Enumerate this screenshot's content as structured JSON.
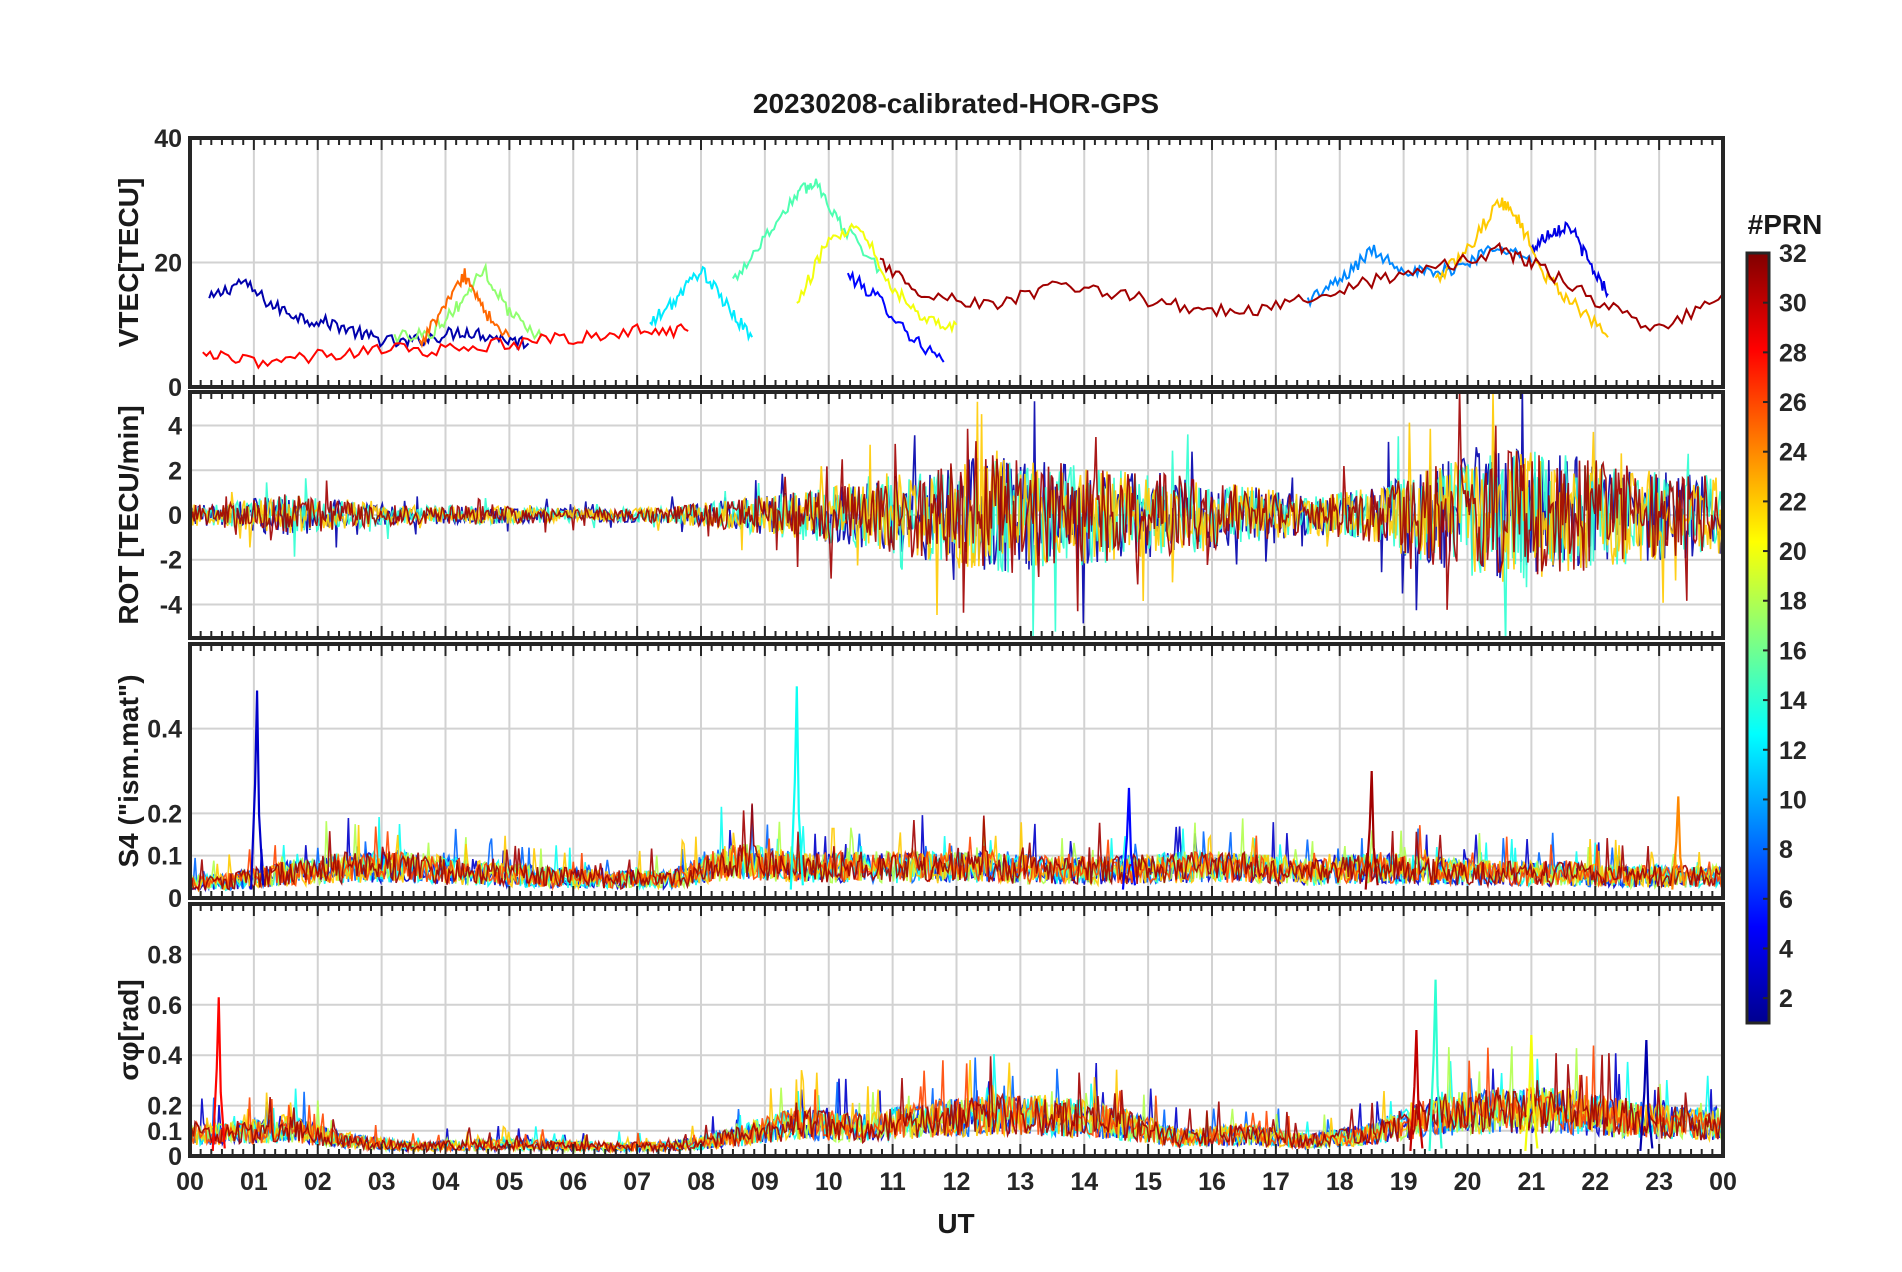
{
  "chart_data": {
    "type": "line",
    "title": "20230208-calibrated-HOR-GPS",
    "xlabel": "UT",
    "x_ticks": [
      "00",
      "01",
      "02",
      "03",
      "04",
      "05",
      "06",
      "07",
      "08",
      "09",
      "10",
      "11",
      "12",
      "13",
      "14",
      "15",
      "16",
      "17",
      "18",
      "19",
      "20",
      "21",
      "22",
      "23",
      "00"
    ],
    "x_range": [
      0,
      24
    ],
    "colorbar": {
      "label": "#PRN",
      "range": [
        1,
        32
      ],
      "ticks": [
        "2",
        "4",
        "6",
        "8",
        "10",
        "12",
        "14",
        "16",
        "18",
        "20",
        "22",
        "24",
        "26",
        "28",
        "30",
        "32"
      ],
      "colormap": [
        "#00008f",
        "#0000ff",
        "#0080ff",
        "#00ffff",
        "#80ff80",
        "#ffff00",
        "#ff8000",
        "#ff0000",
        "#800000"
      ]
    },
    "panels": [
      {
        "name": "vtec",
        "ylabel": "VTEC[TECU]",
        "ylim": [
          0,
          40
        ],
        "y_ticks": [
          "0",
          "20",
          "40"
        ],
        "series": [
          {
            "prn": 2,
            "x": [
              0.3,
              0.8,
              1.3,
              1.8,
              2.3,
              2.8,
              3.3,
              3.8,
              4.3,
              4.8,
              5.3
            ],
            "y": [
              14,
              17,
              13,
              11,
              10,
              8,
              7,
              8,
              9,
              8,
              7
            ]
          },
          {
            "prn": 5,
            "x": [
              10.3,
              10.8,
              11.3,
              11.8
            ],
            "y": [
              18,
              14,
              8,
              4
            ]
          },
          {
            "prn": 4,
            "x": [
              21.0,
              21.3,
              21.6,
              21.9,
              22.2
            ],
            "y": [
              22,
              25,
              26,
              20,
              15
            ]
          },
          {
            "prn": 9,
            "x": [
              17.5,
              18.0,
              18.5,
              19.0,
              19.5,
              20.0,
              20.5,
              21.0
            ],
            "y": [
              14,
              17,
              22,
              19,
              18,
              20,
              23,
              20
            ]
          },
          {
            "prn": 12,
            "x": [
              7.2,
              7.6,
              8.0,
              8.4,
              8.8
            ],
            "y": [
              10,
              14,
              19,
              13,
              8
            ]
          },
          {
            "prn": 15,
            "x": [
              8.5,
              9.0,
              9.5,
              9.8,
              10.2,
              10.8
            ],
            "y": [
              17,
              24,
              31,
              33,
              26,
              19
            ]
          },
          {
            "prn": 17,
            "x": [
              3.2,
              3.8,
              4.2,
              4.6,
              5.0,
              5.5
            ],
            "y": [
              8,
              9,
              13,
              19,
              12,
              8
            ]
          },
          {
            "prn": 20,
            "x": [
              9.5,
              10.0,
              10.5,
              11.0,
              11.5,
              12.0
            ],
            "y": [
              13,
              24,
              26,
              16,
              11,
              10
            ]
          },
          {
            "prn": 22,
            "x": [
              19.5,
              20.0,
              20.5,
              20.8,
              21.2,
              21.6,
              22.2
            ],
            "y": [
              17,
              22,
              30,
              27,
              18,
              14,
              8
            ]
          },
          {
            "prn": 25,
            "x": [
              3.6,
              4.0,
              4.3,
              4.6,
              5.0
            ],
            "y": [
              7,
              13,
              18,
              12,
              8
            ]
          },
          {
            "prn": 28,
            "x": [
              0.2,
              1.0,
              2.0,
              3.0,
              4.0,
              5.0,
              6.0,
              7.0,
              7.8
            ],
            "y": [
              5,
              4,
              5,
              6,
              6,
              7,
              8,
              9,
              9
            ]
          },
          {
            "prn": 31,
            "x": [
              10.8,
              11.5,
              12.5,
              13.5,
              14.5,
              15.5,
              16.5,
              17.5,
              18.5,
              19.5,
              20.5,
              21.0,
              22.0,
              23.0,
              24.0
            ],
            "y": [
              20,
              15,
              13,
              16,
              15,
              13,
              12,
              14,
              17,
              19,
              22,
              20,
              14,
              9,
              15
            ]
          }
        ]
      },
      {
        "name": "rot",
        "ylabel": "ROT [TECU/min]",
        "ylim": [
          -5.5,
          5.5
        ],
        "y_ticks": [
          "-4",
          "-2",
          "0",
          "2",
          "4"
        ],
        "series": [
          {
            "prn": 2,
            "amplitude": [
              0.8,
              1.6,
              1.0,
              0.7,
              0.7,
              0.6,
              0.5,
              0.6,
              1.2,
              1.8,
              2.5,
              3.4,
              4.5,
              4.0,
              3.5,
              3.0,
              2.2,
              1.5,
              2.0,
              4.0,
              5.0,
              4.5,
              3.8,
              3.0
            ]
          },
          {
            "prn": 14,
            "amplitude": [
              0.8,
              1.6,
              1.0,
              0.7,
              0.7,
              0.6,
              0.5,
              0.6,
              1.2,
              1.8,
              2.5,
              3.4,
              4.5,
              4.0,
              3.5,
              3.0,
              2.2,
              1.5,
              2.0,
              4.0,
              5.0,
              4.5,
              3.8,
              3.0
            ]
          },
          {
            "prn": 22,
            "amplitude": [
              0.8,
              1.6,
              1.0,
              0.7,
              0.7,
              0.6,
              0.5,
              0.6,
              1.2,
              1.8,
              2.5,
              3.4,
              4.5,
              4.0,
              3.5,
              3.0,
              2.2,
              1.5,
              2.0,
              4.0,
              5.0,
              4.5,
              3.8,
              3.0
            ]
          },
          {
            "prn": 31,
            "amplitude": [
              0.8,
              1.6,
              1.0,
              0.7,
              0.7,
              0.6,
              0.5,
              0.6,
              1.2,
              1.8,
              2.5,
              3.4,
              4.5,
              4.0,
              3.5,
              3.0,
              2.2,
              1.5,
              2.0,
              4.0,
              5.0,
              4.5,
              3.8,
              3.0
            ]
          }
        ]
      },
      {
        "name": "s4",
        "ylabel": "S4 (\"ism.mat\")",
        "ylim": [
          0,
          0.6
        ],
        "y_ticks": [
          "0",
          "0.1",
          "0.2",
          "0.4"
        ],
        "peaks": [
          {
            "prn": 3,
            "x": 1.05,
            "y": 0.49
          },
          {
            "prn": 13,
            "x": 9.5,
            "y": 0.5
          },
          {
            "prn": 31,
            "x": 18.5,
            "y": 0.3
          },
          {
            "prn": 24,
            "x": 23.3,
            "y": 0.24
          },
          {
            "prn": 5,
            "x": 14.7,
            "y": 0.26
          }
        ],
        "baseline": [
          0.05,
          0.08,
          0.1,
          0.1,
          0.08,
          0.07,
          0.06,
          0.06,
          0.12,
          0.1,
          0.1,
          0.1,
          0.1,
          0.09,
          0.09,
          0.1,
          0.1,
          0.08,
          0.1,
          0.09,
          0.08,
          0.08,
          0.07,
          0.07
        ]
      },
      {
        "name": "sigma_phi",
        "ylabel": "σφ[rad]",
        "ylim": [
          0,
          1
        ],
        "y_ticks": [
          "0",
          "0.1",
          "0.2",
          "0.4",
          "0.6",
          "0.8"
        ],
        "peaks": [
          {
            "prn": 28,
            "x": 0.45,
            "y": 0.63
          },
          {
            "prn": 14,
            "x": 19.5,
            "y": 0.7
          },
          {
            "prn": 20,
            "x": 21.0,
            "y": 0.48
          },
          {
            "prn": 30,
            "x": 19.2,
            "y": 0.5
          },
          {
            "prn": 2,
            "x": 22.8,
            "y": 0.46
          }
        ],
        "baseline": [
          0.12,
          0.15,
          0.08,
          0.05,
          0.06,
          0.06,
          0.05,
          0.05,
          0.1,
          0.18,
          0.15,
          0.2,
          0.22,
          0.22,
          0.18,
          0.1,
          0.12,
          0.08,
          0.12,
          0.22,
          0.25,
          0.25,
          0.2,
          0.18
        ]
      }
    ]
  }
}
